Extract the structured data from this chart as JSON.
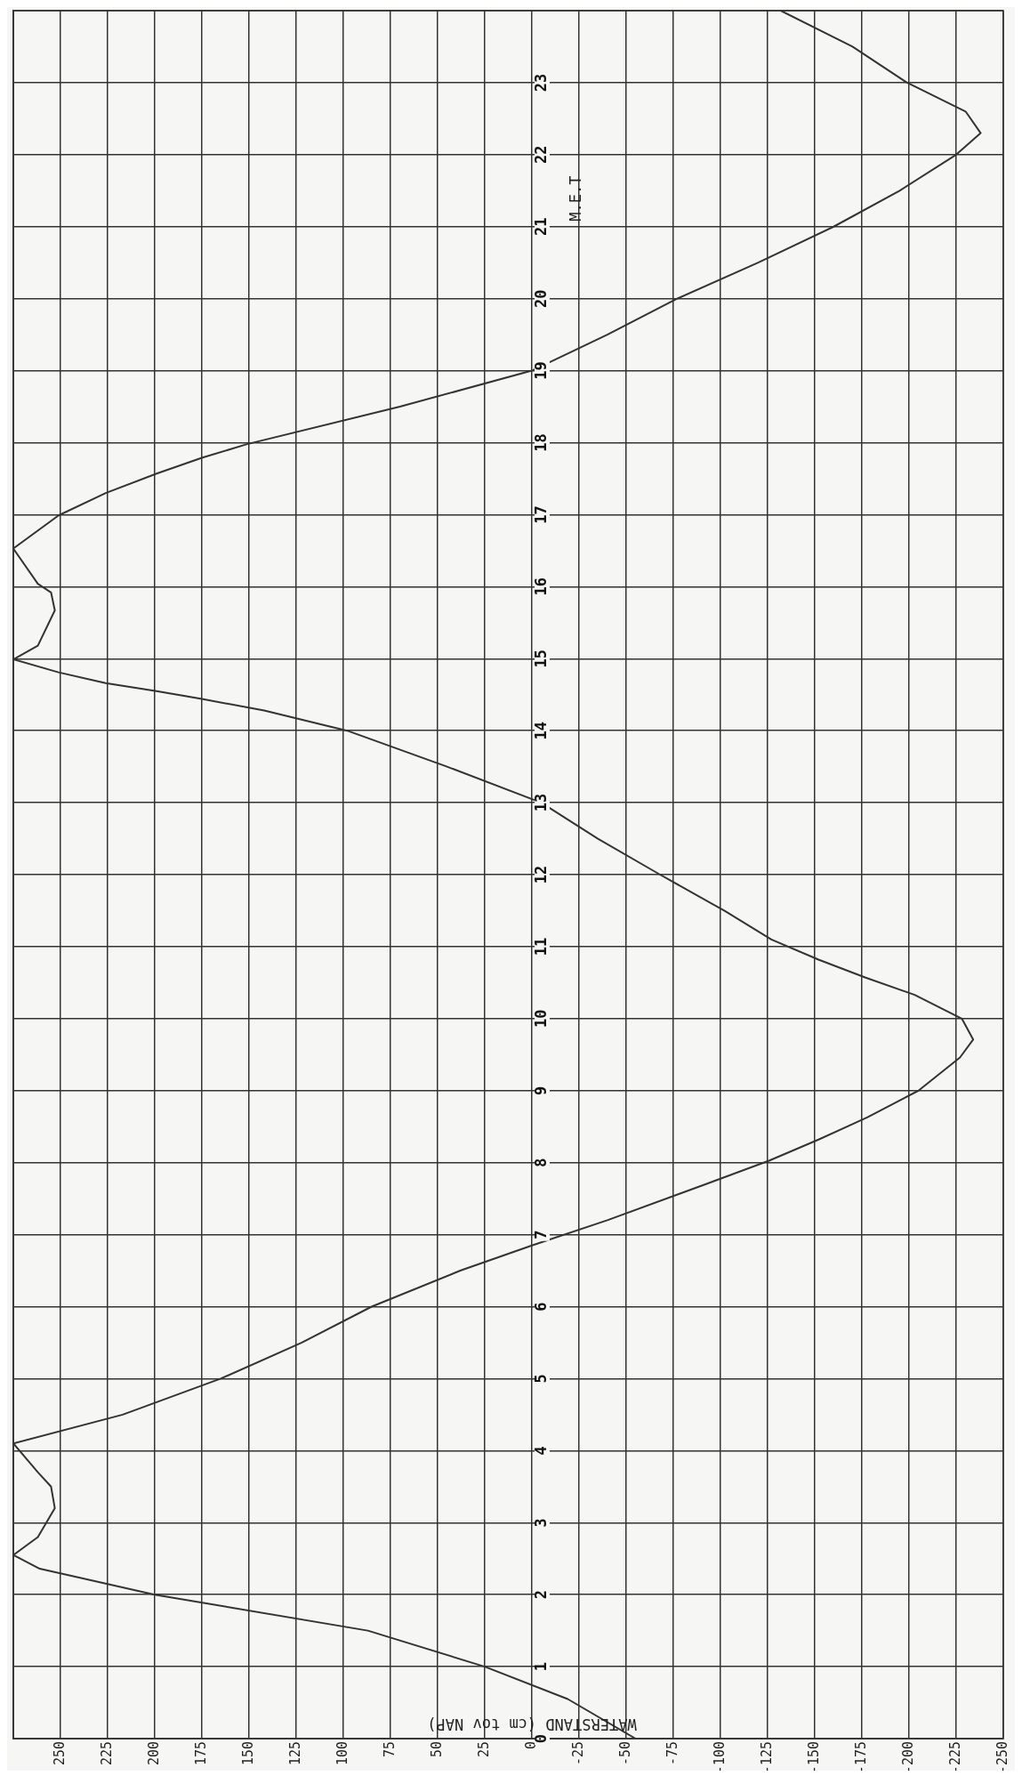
{
  "chart_data": {
    "type": "line",
    "orientation": "horizontal",
    "xlabel": "WATERSTAND (cm tov NAP)",
    "ylabel": "M.E.T",
    "x": [
      0,
      0.55,
      1,
      1.5,
      2,
      2.36,
      2.55,
      2.8,
      3.2,
      3.5,
      3.7,
      4.1,
      4.5,
      5,
      5.5,
      6,
      6.5,
      6.85,
      7.2,
      7.7,
      8.03,
      8.32,
      8.63,
      9,
      9.46,
      9.71,
      10,
      10.33,
      10.57,
      10.82,
      11.1,
      11.5,
      12,
      12.5,
      13,
      13.5,
      14,
      14.28,
      14.44,
      14.55,
      14.66,
      14.81,
      14.99,
      15.18,
      15.67,
      15.92,
      16.04,
      16.53,
      16.99,
      17.3,
      17.57,
      17.79,
      17.98,
      18.5,
      19,
      19.5,
      20,
      20.5,
      21,
      21.5,
      22,
      22.3,
      22.6,
      23,
      23.5,
      24
    ],
    "series": [
      {
        "color": "#333333",
        "values": [
          -55,
          -19,
          25,
          87,
          200,
          261,
          275,
          262,
          253,
          255,
          262,
          275,
          217,
          165,
          122,
          85,
          38,
          0,
          -40,
          -92,
          -126,
          -152,
          -178,
          -205,
          -227,
          -234,
          -228,
          -203,
          -177,
          -152,
          -127,
          -102,
          -68,
          -35,
          -5,
          45,
          98,
          142,
          175,
          199,
          226,
          251,
          275,
          262,
          253,
          255,
          262,
          275,
          251,
          226,
          199,
          175,
          151,
          70,
          0,
          -40,
          -77,
          -120,
          -160,
          -195,
          -225,
          -238,
          -230,
          -199,
          -170,
          -132
        ]
      }
    ],
    "xlim": [
      275,
      -250
    ],
    "xticks": [
      {
        "value": 275,
        "label": null
      },
      250,
      225,
      200,
      175,
      150,
      125,
      100,
      75,
      50,
      25,
      0,
      -25,
      -50,
      -75,
      -100,
      -125,
      -150,
      -175,
      -200,
      -225,
      -250
    ],
    "ylim": [
      0,
      24
    ],
    "yticks": [
      0,
      1,
      2,
      3,
      4,
      5,
      6,
      7,
      8,
      9,
      10,
      11,
      12,
      13,
      14,
      15,
      16,
      17,
      18,
      19,
      20,
      21,
      22,
      23,
      {
        "value": 24,
        "label": null
      }
    ],
    "grid": true,
    "marker": "none",
    "line_style": "solid",
    "legend": false
  }
}
